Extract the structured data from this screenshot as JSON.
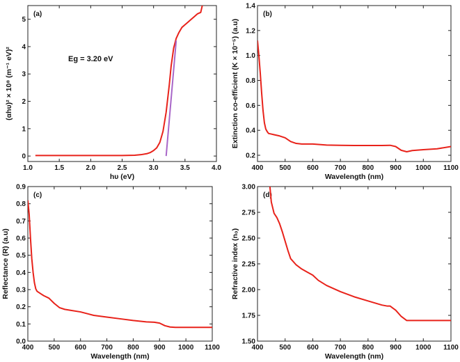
{
  "chart_data": [
    {
      "type": "line",
      "panel_label": "(a)",
      "xlabel": "hυ (eV)",
      "ylabel": "(αhυ)² × 10⁸ (m⁻¹ eV)²",
      "xlim": [
        1.0,
        4.0
      ],
      "ylim": [
        -0.2,
        5.5
      ],
      "xticks": [
        "1.0",
        "1.5",
        "2.0",
        "2.5",
        "3.0",
        "3.5",
        "4.0"
      ],
      "yticks": [
        "0",
        "1",
        "2",
        "3",
        "4",
        "5"
      ],
      "annotation": "Eg = 3.20 eV",
      "colors": {
        "series": "#e8221a",
        "fit": "#a866c8"
      },
      "series": [
        {
          "x": [
            1.12,
            1.5,
            2.0,
            2.5,
            2.7,
            2.8,
            2.9,
            2.95,
            3.0,
            3.05,
            3.1,
            3.15,
            3.2,
            3.25,
            3.28,
            3.32,
            3.36,
            3.4,
            3.45,
            3.5,
            3.55,
            3.6,
            3.65,
            3.7,
            3.75,
            3.78
          ],
          "y": [
            0.02,
            0.02,
            0.02,
            0.02,
            0.03,
            0.05,
            0.09,
            0.13,
            0.2,
            0.3,
            0.5,
            0.9,
            1.6,
            2.6,
            3.3,
            3.95,
            4.3,
            4.5,
            4.7,
            4.8,
            4.9,
            5.0,
            5.1,
            5.2,
            5.25,
            5.55
          ]
        }
      ],
      "fit_line": {
        "x": [
          3.2,
          3.36
        ],
        "y": [
          0.0,
          4.22
        ]
      }
    },
    {
      "type": "line",
      "panel_label": "(b)",
      "xlabel": "Wavelength (nm)",
      "ylabel": "Extinction co-efficient (K × 10⁻⁵) (a.u)",
      "xlim": [
        400,
        1100
      ],
      "ylim": [
        0.15,
        1.4
      ],
      "xticks": [
        "400",
        "500",
        "600",
        "700",
        "800",
        "900",
        "1000",
        "1100"
      ],
      "yticks": [
        "0.2",
        "0.4",
        "0.6",
        "0.8",
        "1.0",
        "1.2",
        "1.4"
      ],
      "colors": {
        "series": "#e8221a"
      },
      "series": [
        {
          "x": [
            400,
            405,
            410,
            415,
            420,
            425,
            430,
            435,
            440,
            450,
            460,
            480,
            500,
            520,
            540,
            560,
            600,
            650,
            700,
            750,
            800,
            850,
            880,
            900,
            920,
            940,
            960,
            1000,
            1050,
            1100
          ],
          "y": [
            1.12,
            1.0,
            0.86,
            0.7,
            0.56,
            0.46,
            0.41,
            0.39,
            0.375,
            0.37,
            0.365,
            0.355,
            0.34,
            0.31,
            0.295,
            0.29,
            0.29,
            0.282,
            0.28,
            0.278,
            0.278,
            0.278,
            0.28,
            0.27,
            0.24,
            0.228,
            0.238,
            0.245,
            0.252,
            0.27
          ]
        }
      ]
    },
    {
      "type": "line",
      "panel_label": "(c)",
      "xlabel": "Wavelength (nm)",
      "ylabel": "Reflectance (R) (a.u)",
      "xlim": [
        400,
        1100
      ],
      "ylim": [
        0.0,
        0.9
      ],
      "xticks": [
        "400",
        "500",
        "600",
        "700",
        "800",
        "900",
        "1000",
        "1100"
      ],
      "yticks": [
        "0.0",
        "0.1",
        "0.2",
        "0.3",
        "0.4",
        "0.5",
        "0.6",
        "0.7",
        "0.8",
        "0.9"
      ],
      "colors": {
        "series": "#e8221a"
      },
      "series": [
        {
          "x": [
            400,
            405,
            410,
            415,
            420,
            425,
            430,
            435,
            440,
            450,
            460,
            480,
            500,
            520,
            540,
            560,
            600,
            650,
            700,
            750,
            800,
            850,
            880,
            900,
            920,
            940,
            960,
            1000,
            1050,
            1100
          ],
          "y": [
            0.82,
            0.74,
            0.6,
            0.48,
            0.4,
            0.34,
            0.305,
            0.29,
            0.285,
            0.275,
            0.265,
            0.25,
            0.22,
            0.195,
            0.185,
            0.18,
            0.17,
            0.15,
            0.14,
            0.13,
            0.12,
            0.112,
            0.11,
            0.105,
            0.09,
            0.082,
            0.08,
            0.08,
            0.08,
            0.08
          ]
        }
      ]
    },
    {
      "type": "line",
      "panel_label": "(d)",
      "xlabel": "Wavelength (nm)",
      "ylabel": "Refractive index (n₀)",
      "xlim": [
        400,
        1100
      ],
      "ylim": [
        1.5,
        3.0
      ],
      "xticks": [
        "400",
        "500",
        "600",
        "700",
        "800",
        "900",
        "1000",
        "1100"
      ],
      "yticks": [
        "1.50",
        "1.75",
        "2.00",
        "2.25",
        "2.50",
        "2.75",
        "3.00"
      ],
      "colors": {
        "series": "#e8221a"
      },
      "series": [
        {
          "x": [
            445,
            450,
            460,
            470,
            480,
            490,
            500,
            510,
            520,
            540,
            560,
            580,
            600,
            620,
            650,
            700,
            750,
            800,
            850,
            870,
            880,
            890,
            900,
            920,
            940,
            960,
            1000,
            1050,
            1100
          ],
          "y": [
            3.0,
            2.85,
            2.74,
            2.7,
            2.64,
            2.56,
            2.47,
            2.38,
            2.3,
            2.24,
            2.2,
            2.17,
            2.14,
            2.09,
            2.04,
            1.98,
            1.93,
            1.89,
            1.85,
            1.84,
            1.84,
            1.82,
            1.8,
            1.74,
            1.7,
            1.7,
            1.7,
            1.7,
            1.7
          ]
        }
      ]
    }
  ]
}
